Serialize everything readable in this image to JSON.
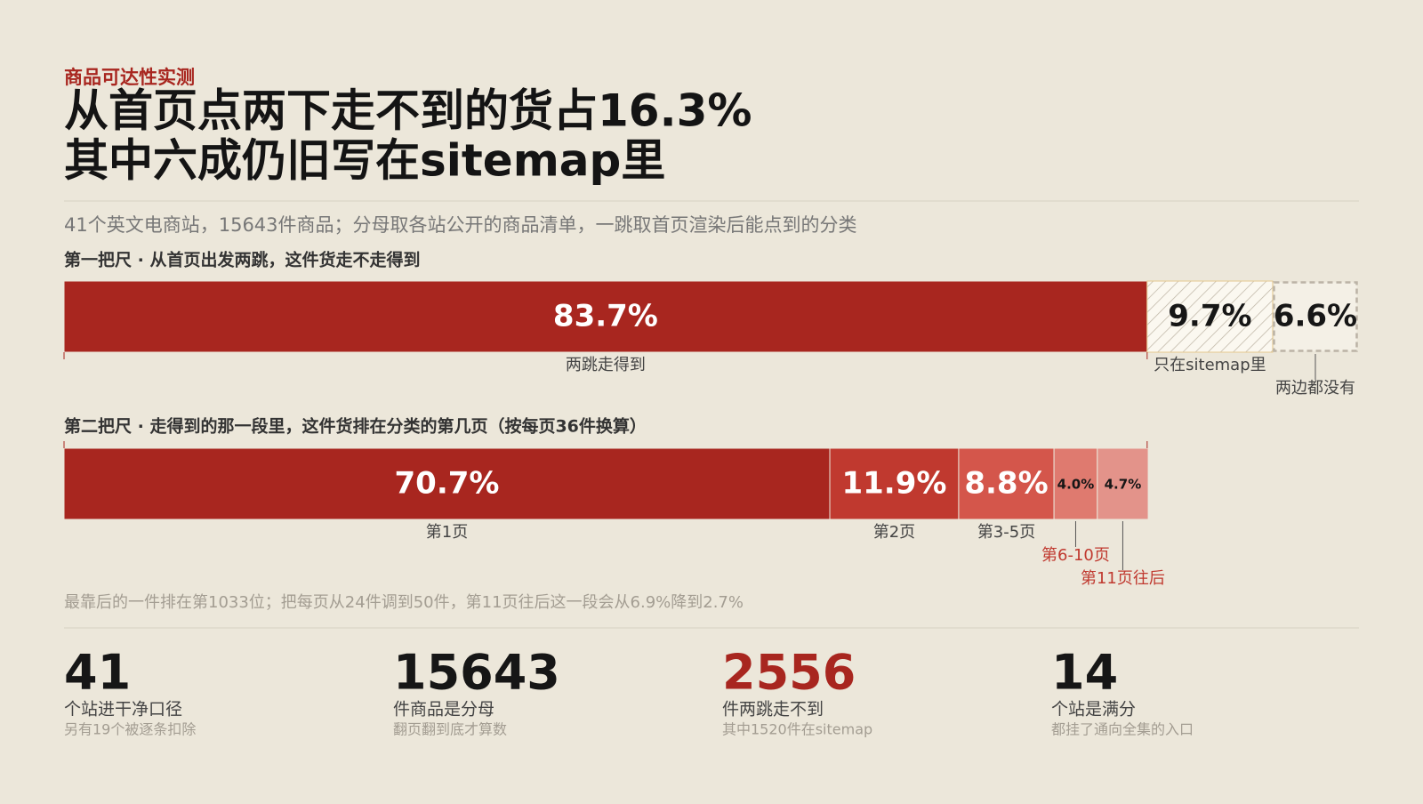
{
  "header": {
    "kicker": "商品可达性实测",
    "title_lines": [
      "从首页点两下走不到的货占16.3%",
      "其中六成仍旧写在sitemap里"
    ],
    "subtitle": "41个英文电商站，15643件商品；分母取各站公开的商品清单，一跳取首页渲染后能点到的分类"
  },
  "chart_data": [
    {
      "type": "stacked-bar",
      "title": "第一把尺 · 从首页出发两跳，这件货走不走得到",
      "series": [
        {
          "name": "两跳走得到",
          "color": "#a8261f",
          "style": "solid",
          "values": [
            83.7
          ],
          "value_labels": [
            "83.7%"
          ]
        },
        {
          "name": "只在sitemap里",
          "color": "#fbf8f0",
          "style": "hatch",
          "values": [
            9.7
          ],
          "value_labels": [
            "9.7%"
          ]
        },
        {
          "name": "两边都没有",
          "color": "#bbb3a6",
          "style": "dashed",
          "values": [
            6.6
          ],
          "value_labels": [
            "6.6%"
          ]
        }
      ]
    },
    {
      "type": "stacked-bar",
      "title": "第二把尺 · 走得到的那一段里，这件货排在分类的第几页（按每页36件换算）",
      "series": [
        {
          "name": "第1页",
          "color": "#a8261f",
          "style": "solid",
          "values": [
            70.7
          ],
          "value_labels": [
            "70.7%"
          ]
        },
        {
          "name": "第2页",
          "color": "#c0392f",
          "style": "solid",
          "values": [
            11.9
          ],
          "value_labels": [
            "11.9%"
          ]
        },
        {
          "name": "第3-5页",
          "color": "#d4564b",
          "style": "solid",
          "values": [
            8.8
          ],
          "value_labels": [
            "8.8%"
          ]
        },
        {
          "name": "第6-10页",
          "color": "#df7a6f",
          "style": "solid",
          "label_color": "#c0392f",
          "values": [
            4.0
          ],
          "value_labels": [
            "4.0%"
          ]
        },
        {
          "name": "第11页往后",
          "color": "#e3938a",
          "style": "solid",
          "label_color": "#c0392f",
          "values": [
            4.7
          ],
          "value_labels": [
            "4.7%"
          ]
        }
      ]
    }
  ],
  "note": "最靠后的一件排在第1033位；把每页从24件调到50件，第11页往后这一段会从6.9%降到2.7%",
  "stats": [
    {
      "value": "41",
      "label": "个站进干净口径",
      "sub": "另有19个被逐条扣除",
      "color": "#161616"
    },
    {
      "value": "15643",
      "label": "件商品是分母",
      "sub": "翻页翻到底才算数",
      "color": "#161616"
    },
    {
      "value": "2556",
      "label": "件两跳走不到",
      "sub": "其中1520件在sitemap",
      "color": "#a8261f"
    },
    {
      "value": "14",
      "label": "个站是满分",
      "sub": "都挂了通向全集的入口",
      "color": "#161616"
    }
  ]
}
